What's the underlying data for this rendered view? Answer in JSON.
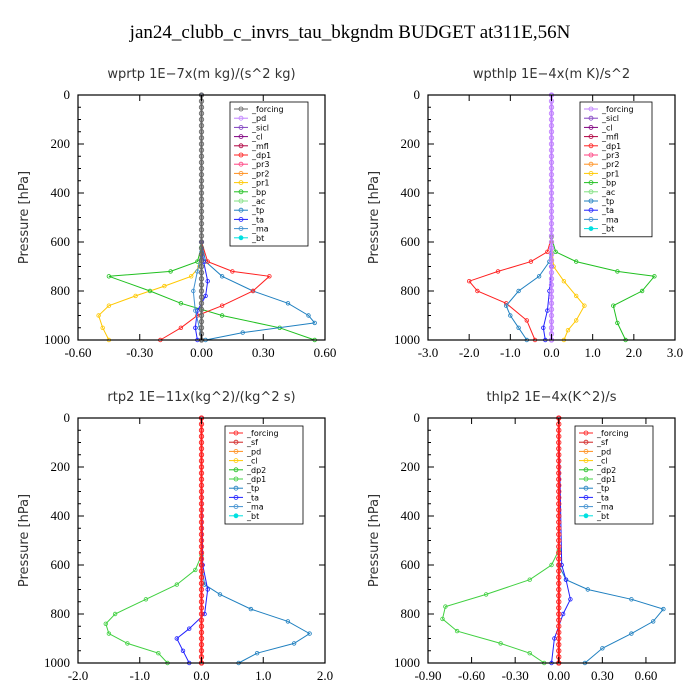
{
  "suptitle": "jan24_clubb_c_invrs_tau_bkgndm  BUDGET at311E,56N",
  "chart_data": [
    {
      "type": "line",
      "title": "wprtp   1E−7x(m kg)/(s^2 kg)",
      "ylabel": "Pressure [hPa]",
      "xlim": [
        -0.6,
        0.6
      ],
      "ylim": [
        1000,
        0
      ],
      "xticks": [
        "-0.60",
        "-0.30",
        "0.00",
        "0.30",
        "0.60"
      ],
      "xtick_values": [
        -0.6,
        -0.3,
        0,
        0.3,
        0.6
      ],
      "yticks": [
        "0",
        "200",
        "400",
        "600",
        "800",
        "1000"
      ],
      "ytick_values": [
        0,
        200,
        400,
        600,
        800,
        1000
      ],
      "legend": [
        "_forcing",
        "_pd",
        "_sicl",
        "_cl",
        "_mfl",
        "_dp1",
        "_pr3",
        "_pr2",
        "_pr1",
        "_bp",
        "_ac",
        "_tp",
        "_ta",
        "_ma",
        "_bt"
      ],
      "legend_colors": [
        "#666666",
        "#c080ff",
        "#8040c0",
        "#800080",
        "#b00040",
        "#ff2020",
        "#ff4080",
        "#ff9020",
        "#ffc800",
        "#20c020",
        "#80e080",
        "#2080c0",
        "#2020ff",
        "#4090d0",
        "#00e0e0"
      ],
      "series": [
        {
          "name": "_pr1",
          "color": "#ffc800",
          "x": [
            0,
            -0.01,
            -0.05,
            -0.18,
            -0.32,
            -0.45,
            -0.5,
            -0.48,
            -0.45
          ],
          "y": [
            600,
            700,
            740,
            780,
            820,
            860,
            900,
            950,
            1000
          ]
        },
        {
          "name": "_ac",
          "color": "#20c020",
          "x": [
            0,
            -0.02,
            -0.15,
            -0.45,
            -0.25,
            -0.1,
            0.1,
            0.38,
            0.55
          ],
          "y": [
            620,
            680,
            720,
            740,
            800,
            850,
            900,
            950,
            1000
          ]
        },
        {
          "name": "_tp",
          "color": "#2080c0",
          "x": [
            0,
            0.02,
            0.1,
            0.25,
            0.42,
            0.52,
            0.55,
            0.2,
            0.02
          ],
          "y": [
            600,
            680,
            740,
            800,
            850,
            900,
            930,
            970,
            1000
          ]
        },
        {
          "name": "_dp1",
          "color": "#ff2020",
          "x": [
            0,
            0.03,
            0.15,
            0.33,
            0.25,
            0.1,
            -0.02,
            -0.1,
            -0.2
          ],
          "y": [
            600,
            680,
            720,
            740,
            800,
            860,
            900,
            950,
            1000
          ]
        },
        {
          "name": "_ta",
          "color": "#2020ff",
          "x": [
            0,
            0,
            0.01,
            0.03,
            0.02,
            -0.02,
            -0.03,
            -0.02
          ],
          "y": [
            0,
            600,
            680,
            760,
            820,
            880,
            950,
            1000
          ]
        },
        {
          "name": "_ma",
          "color": "#4090d0",
          "x": [
            0,
            0,
            -0.02,
            -0.04,
            -0.03,
            -0.01,
            0
          ],
          "y": [
            0,
            640,
            720,
            800,
            880,
            950,
            1000
          ]
        },
        {
          "name": "_forcing",
          "color": "#666666",
          "x": [
            0,
            0
          ],
          "y": [
            0,
            1000
          ]
        }
      ]
    },
    {
      "type": "line",
      "title": "wpthlp   1E−4x(m K)/s^2",
      "ylabel": "Pressure [hPa]",
      "xlim": [
        -3,
        3
      ],
      "ylim": [
        1000,
        0
      ],
      "xticks": [
        "-3.0",
        "-2.0",
        "-1.0",
        "0.0",
        "1.0",
        "2.0",
        "3.0"
      ],
      "xtick_values": [
        -3,
        -2,
        -1,
        0,
        1,
        2,
        3
      ],
      "yticks": [
        "0",
        "200",
        "400",
        "600",
        "800",
        "1000"
      ],
      "ytick_values": [
        0,
        200,
        400,
        600,
        800,
        1000
      ],
      "legend": [
        "_forcing",
        "_sicl",
        "_cl",
        "_mfl",
        "_dp1",
        "_pr3",
        "_pr2",
        "_pr1",
        "_bp",
        "_ac",
        "_tp",
        "_ta",
        "_ma",
        "_bt"
      ],
      "legend_colors": [
        "#c080ff",
        "#8040c0",
        "#800080",
        "#b00040",
        "#ff2020",
        "#ff4080",
        "#ff9020",
        "#ffc800",
        "#20c020",
        "#80e080",
        "#2080c0",
        "#2020ff",
        "#4090d0",
        "#00e0e0"
      ],
      "series": [
        {
          "name": "_dp1",
          "color": "#ff2020",
          "x": [
            0,
            -0.1,
            -0.5,
            -1.3,
            -2.0,
            -1.8,
            -1.1,
            -0.6,
            -0.4
          ],
          "y": [
            580,
            640,
            680,
            720,
            760,
            800,
            850,
            920,
            1000
          ]
        },
        {
          "name": "_ac",
          "color": "#20c020",
          "x": [
            0,
            0.1,
            0.6,
            1.6,
            2.5,
            2.2,
            1.5,
            1.6,
            1.8
          ],
          "y": [
            580,
            640,
            680,
            720,
            740,
            800,
            860,
            930,
            1000
          ]
        },
        {
          "name": "_tp",
          "color": "#2080c0",
          "x": [
            0,
            -0.05,
            -0.3,
            -0.8,
            -1.1,
            -1.0,
            -0.8,
            -0.6
          ],
          "y": [
            600,
            680,
            740,
            800,
            860,
            900,
            950,
            1000
          ]
        },
        {
          "name": "_pr1",
          "color": "#ffc800",
          "x": [
            0,
            0.05,
            0.3,
            0.6,
            0.8,
            0.6,
            0.4,
            0.3
          ],
          "y": [
            600,
            700,
            760,
            820,
            860,
            920,
            960,
            1000
          ]
        },
        {
          "name": "_ta",
          "color": "#2020ff",
          "x": [
            0,
            0,
            -0.05,
            -0.1,
            -0.2,
            -0.15
          ],
          "y": [
            0,
            700,
            800,
            880,
            950,
            1000
          ]
        },
        {
          "name": "_forcing",
          "color": "#c080ff",
          "x": [
            0,
            0
          ],
          "y": [
            0,
            1000
          ]
        }
      ]
    },
    {
      "type": "line",
      "title": "rtp2   1E−11x(kg^2)/(kg^2 s)",
      "ylabel": "Pressure [hPa]",
      "xlim": [
        -2,
        2
      ],
      "ylim": [
        1000,
        0
      ],
      "xticks": [
        "-2.0",
        "-1.0",
        "0.0",
        "1.0",
        "2.0"
      ],
      "xtick_values": [
        -2,
        -1,
        0,
        1,
        2
      ],
      "yticks": [
        "0",
        "200",
        "400",
        "600",
        "800",
        "1000"
      ],
      "ytick_values": [
        0,
        200,
        400,
        600,
        800,
        1000
      ],
      "legend": [
        "_forcing",
        "_sf",
        "_pd",
        "_cl",
        "_dp2",
        "_dp1",
        "_tp",
        "_ta",
        "_ma",
        "_bt"
      ],
      "legend_colors": [
        "#ff2020",
        "#d02020",
        "#ff9020",
        "#ffc800",
        "#20c020",
        "#40d040",
        "#2080c0",
        "#2020ff",
        "#4090d0",
        "#00e0e0"
      ],
      "series": [
        {
          "name": "_dp1",
          "color": "#40d040",
          "x": [
            0,
            -0.1,
            -0.4,
            -0.9,
            -1.4,
            -1.55,
            -1.5,
            -1.2,
            -0.7,
            -0.55
          ],
          "y": [
            560,
            620,
            680,
            740,
            800,
            840,
            880,
            920,
            960,
            1000
          ]
        },
        {
          "name": "_tp",
          "color": "#2080c0",
          "x": [
            0,
            0.05,
            0.3,
            0.8,
            1.4,
            1.75,
            1.5,
            0.9,
            0.6
          ],
          "y": [
            600,
            680,
            720,
            780,
            830,
            880,
            920,
            960,
            1000
          ]
        },
        {
          "name": "_ta",
          "color": "#2020ff",
          "x": [
            0,
            0.02,
            0.1,
            0.05,
            -0.2,
            -0.4,
            -0.3,
            -0.2
          ],
          "y": [
            0,
            600,
            700,
            800,
            860,
            900,
            950,
            1000
          ]
        },
        {
          "name": "_forcing",
          "color": "#ff2020",
          "x": [
            0,
            0
          ],
          "y": [
            0,
            1000
          ]
        }
      ]
    },
    {
      "type": "line",
      "title": "thlp2   1E−4x(K^2)/s",
      "ylabel": "Pressure [hPa]",
      "xlim": [
        -0.9,
        0.8
      ],
      "ylim": [
        1000,
        0
      ],
      "xticks": [
        "-0.90",
        "-0.60",
        "-0.30",
        "0.00",
        "0.30",
        "0.60"
      ],
      "xtick_values": [
        -0.9,
        -0.6,
        -0.3,
        0,
        0.3,
        0.6
      ],
      "yticks": [
        "0",
        "200",
        "400",
        "600",
        "800",
        "1000"
      ],
      "ytick_values": [
        0,
        200,
        400,
        600,
        800,
        1000
      ],
      "legend": [
        "_forcing",
        "_sf",
        "_pd",
        "_cl",
        "_dp2",
        "_dp1",
        "_tp",
        "_ta",
        "_ma",
        "_bt"
      ],
      "legend_colors": [
        "#ff2020",
        "#d02020",
        "#ff9020",
        "#ffc800",
        "#20c020",
        "#40d040",
        "#2080c0",
        "#2020ff",
        "#4090d0",
        "#00e0e0"
      ],
      "series": [
        {
          "name": "_dp1",
          "color": "#40d040",
          "x": [
            0,
            -0.05,
            -0.2,
            -0.5,
            -0.78,
            -0.8,
            -0.7,
            -0.4,
            -0.2,
            -0.1
          ],
          "y": [
            540,
            600,
            660,
            720,
            770,
            820,
            870,
            920,
            960,
            1000
          ]
        },
        {
          "name": "_tp",
          "color": "#2080c0",
          "x": [
            0,
            0.05,
            0.2,
            0.5,
            0.72,
            0.65,
            0.5,
            0.3,
            0.18
          ],
          "y": [
            600,
            660,
            700,
            740,
            780,
            830,
            880,
            940,
            1000
          ]
        },
        {
          "name": "_ta",
          "color": "#2020ff",
          "x": [
            0,
            0.02,
            0.05,
            0.08,
            0.03,
            -0.03,
            -0.05
          ],
          "y": [
            0,
            600,
            660,
            740,
            800,
            900,
            1000
          ]
        },
        {
          "name": "_forcing",
          "color": "#ff2020",
          "x": [
            0,
            0
          ],
          "y": [
            0,
            1000
          ]
        }
      ]
    }
  ]
}
